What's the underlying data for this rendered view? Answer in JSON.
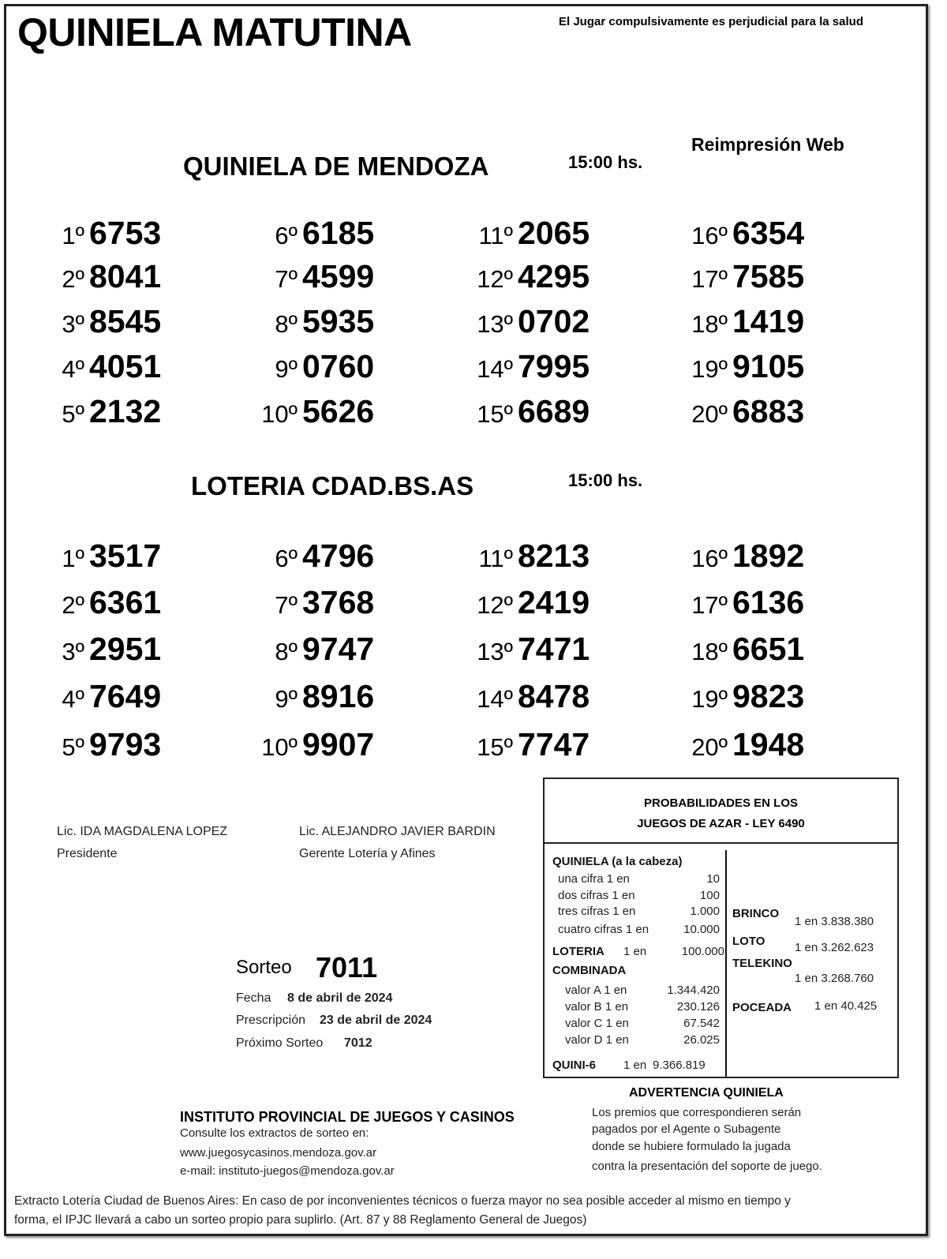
{
  "header": {
    "title": "QUINIELA MATUTINA",
    "warning": "El Jugar compulsivamente es perjudicial para la salud",
    "reprint": "Reimpresión Web"
  },
  "draws": [
    {
      "name": "QUINIELA  DE MENDOZA",
      "time": "15:00  hs.",
      "results": [
        {
          "pos": "1º",
          "num": "6753"
        },
        {
          "pos": "2º",
          "num": "8041"
        },
        {
          "pos": "3º",
          "num": "8545"
        },
        {
          "pos": "4º",
          "num": "4051"
        },
        {
          "pos": "5º",
          "num": "2132"
        },
        {
          "pos": "6º",
          "num": "6185"
        },
        {
          "pos": "7º",
          "num": "4599"
        },
        {
          "pos": "8º",
          "num": "5935"
        },
        {
          "pos": "9º",
          "num": "0760"
        },
        {
          "pos": "10º",
          "num": "5626"
        },
        {
          "pos": "11º",
          "num": "2065"
        },
        {
          "pos": "12º",
          "num": "4295"
        },
        {
          "pos": "13º",
          "num": "0702"
        },
        {
          "pos": "14º",
          "num": "7995"
        },
        {
          "pos": "15º",
          "num": "6689"
        },
        {
          "pos": "16º",
          "num": "6354"
        },
        {
          "pos": "17º",
          "num": "7585"
        },
        {
          "pos": "18º",
          "num": "1419"
        },
        {
          "pos": "19º",
          "num": "9105"
        },
        {
          "pos": "20º",
          "num": "6883"
        }
      ]
    },
    {
      "name": "LOTERIA CDAD.BS.AS",
      "time": "15:00  hs.",
      "results": [
        {
          "pos": "1º",
          "num": "3517"
        },
        {
          "pos": "2º",
          "num": "6361"
        },
        {
          "pos": "3º",
          "num": "2951"
        },
        {
          "pos": "4º",
          "num": "7649"
        },
        {
          "pos": "5º",
          "num": "9793"
        },
        {
          "pos": "6º",
          "num": "4796"
        },
        {
          "pos": "7º",
          "num": "3768"
        },
        {
          "pos": "8º",
          "num": "9747"
        },
        {
          "pos": "9º",
          "num": "8916"
        },
        {
          "pos": "10º",
          "num": "9907"
        },
        {
          "pos": "11º",
          "num": "8213"
        },
        {
          "pos": "12º",
          "num": "2419"
        },
        {
          "pos": "13º",
          "num": "7471"
        },
        {
          "pos": "14º",
          "num": "8478"
        },
        {
          "pos": "15º",
          "num": "7747"
        },
        {
          "pos": "16º",
          "num": "1892"
        },
        {
          "pos": "17º",
          "num": "6136"
        },
        {
          "pos": "18º",
          "num": "6651"
        },
        {
          "pos": "19º",
          "num": "9823"
        },
        {
          "pos": "20º",
          "num": "1948"
        }
      ]
    }
  ],
  "signatures": [
    {
      "name": "Lic. IDA MAGDALENA LOPEZ",
      "role": "Presidente"
    },
    {
      "name": "Lic. ALEJANDRO JAVIER BARDIN",
      "role": "Gerente Lotería y Afines"
    }
  ],
  "sorteo": {
    "label": "Sorteo",
    "number": "7011",
    "fecha_label": "Fecha",
    "fecha": "8 de abril de 2024",
    "prescripcion_label": "Prescripción",
    "prescripcion": "23 de abril de 2024",
    "proximo_label": "Próximo Sorteo",
    "proximo": "7012"
  },
  "probabilities": {
    "title1": "PROBABILIDADES EN LOS",
    "title2": "JUEGOS DE AZAR - LEY 6490",
    "quiniela_label": "QUINIELA (a la cabeza)",
    "quiniela": [
      {
        "label": "una cifra  1 en",
        "value": "10"
      },
      {
        "label": "dos cifras 1 en",
        "value": "100"
      },
      {
        "label": "tres cifras 1 en",
        "value": "1.000"
      },
      {
        "label": "cuatro cifras 1 en",
        "value": "10.000"
      }
    ],
    "loteria_label": "LOTERIA",
    "loteria_odds": "1 en",
    "loteria_value": "100.000",
    "combinada_label": "COMBINADA",
    "combinada": [
      {
        "label": "valor A 1 en",
        "value": "1.344.420"
      },
      {
        "label": "valor B 1 en",
        "value": "230.126"
      },
      {
        "label": "valor C 1 en",
        "value": "67.542"
      },
      {
        "label": "valor D 1 en",
        "value": "26.025"
      }
    ],
    "quini6_label": "QUINI-6",
    "quini6_odds": "1 en",
    "quini6_value": "9.366.819",
    "brinco_label": "BRINCO",
    "brinco": "1 en 3.838.380",
    "loto_label": "LOTO",
    "loto": "1 en 3.262.623",
    "telekino_label": "TELEKINO",
    "telekino": "1 en 3.268.760",
    "poceada_label": "POCEADA",
    "poceada": "1 en 40.425"
  },
  "advertencia": {
    "title": "ADVERTENCIA QUINIELA",
    "lines": [
      "Los premios que correspondieren serán",
      "pagados por el Agente o Subagente",
      "donde se hubiere formulado la jugada",
      "contra la presentación del soporte de juego."
    ]
  },
  "institute": {
    "name": "INSTITUTO PROVINCIAL DE JUEGOS Y CASINOS",
    "consult": "Consulte los extractos de sorteo en:",
    "web": "www.juegosycasinos.mendoza.gov.ar",
    "email": "e-mail:  instituto-juegos@mendoza.gov.ar"
  },
  "footer": {
    "line1": "Extracto Lotería Ciudad de Buenos Aires: En caso de por inconvenientes técnicos o fuerza mayor no sea posible acceder al mismo en tiempo y",
    "line2": "forma, el IPJC llevará a cabo un sorteo propio para suplirlo. (Art. 87 y 88 Reglamento General de Juegos)"
  }
}
